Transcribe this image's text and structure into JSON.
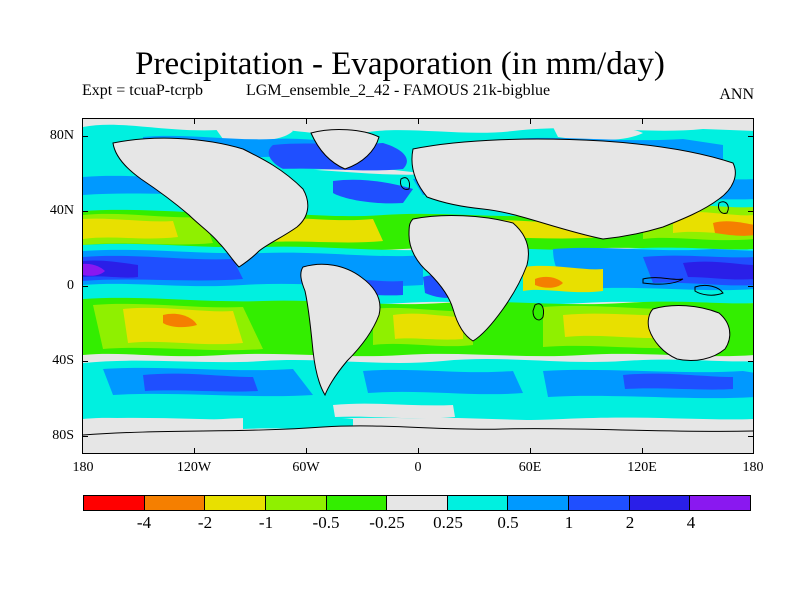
{
  "title": "Precipitation - Evaporation (in mm/day)",
  "subtitle_left": "Expt = tcuaP-tcrpb",
  "subtitle_mid": "LGM_ensemble_2_42 - FAMOUS 21k-bigblue",
  "subtitle_right": "ANN",
  "lat_labels": [
    "80N",
    "40N",
    "0",
    "40S",
    "80S"
  ],
  "lon_labels": [
    "180",
    "120W",
    "60W",
    "0",
    "60E",
    "120E",
    "180"
  ],
  "colorbar": {
    "colors": [
      "#ff0000",
      "#f57f00",
      "#e8e000",
      "#8ff000",
      "#33ee00",
      "#e6e6e6",
      "#00f0e0",
      "#0099ff",
      "#1f4fff",
      "#2a1fe8",
      "#8a18f0"
    ],
    "labels": [
      "-4",
      "-2",
      "-1",
      "-0.5",
      "-0.25",
      "0.25",
      "0.5",
      "1",
      "2",
      "4"
    ]
  },
  "map_colors": {
    "ocean_neutral": "#e6e6e6",
    "dry_strong": "#f57f00",
    "dry_mid": "#e8e000",
    "dry_light": "#8ff000",
    "dry_weak": "#33ee00",
    "wet_weak": "#00f0e0",
    "wet_light": "#0099ff",
    "wet_mid": "#1f4fff",
    "wet_strong": "#2a1fe8",
    "wet_max": "#8a18f0",
    "coast": "#000000"
  }
}
